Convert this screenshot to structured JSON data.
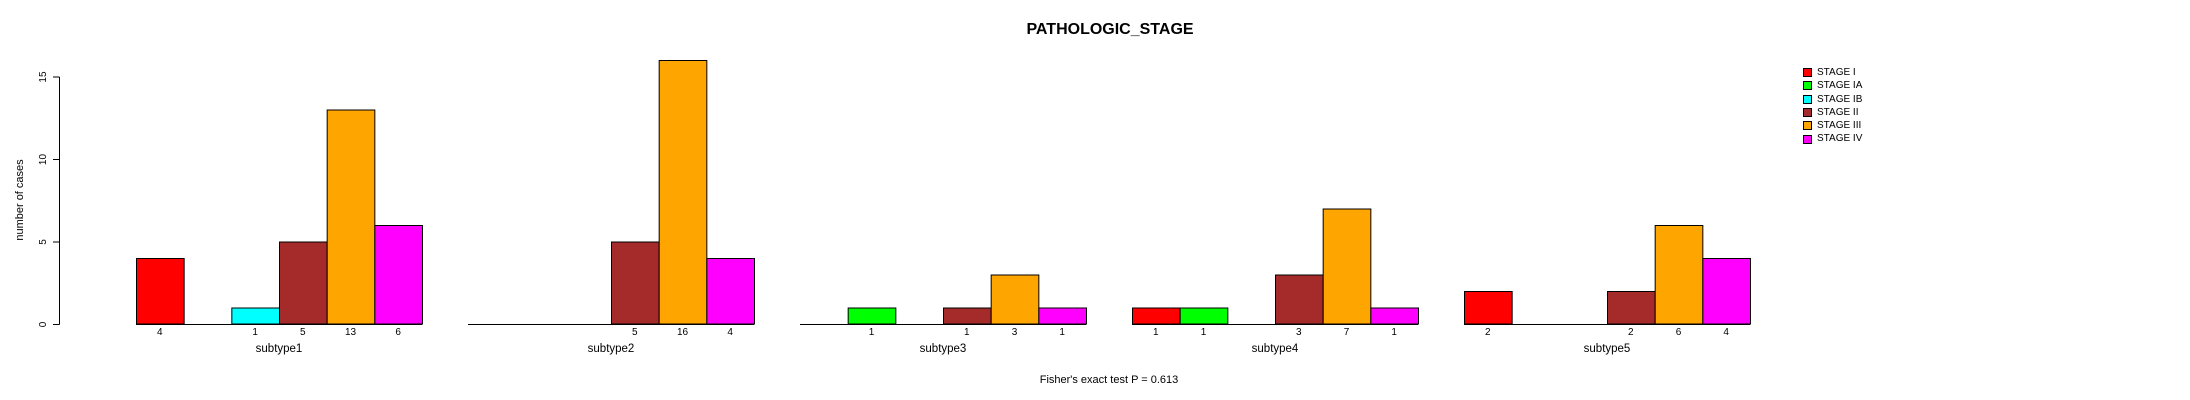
{
  "chart_data": {
    "type": "bar",
    "title": "PATHOLOGIC_STAGE",
    "ylabel": "number of cases",
    "xlabel": "",
    "categories": [
      "subtype1",
      "subtype2",
      "subtype3",
      "subtype4",
      "subtype5"
    ],
    "series": [
      {
        "name": "STAGE I",
        "color": "#FF0000",
        "values": [
          4,
          0,
          0,
          1,
          2
        ]
      },
      {
        "name": "STAGE IA",
        "color": "#00FF00",
        "values": [
          0,
          0,
          1,
          1,
          0
        ]
      },
      {
        "name": "STAGE IB",
        "color": "#00FFFF",
        "values": [
          1,
          0,
          0,
          0,
          0
        ]
      },
      {
        "name": "STAGE II",
        "color": "#A52A2A",
        "values": [
          5,
          5,
          1,
          3,
          2
        ]
      },
      {
        "name": "STAGE III",
        "color": "#FFA500",
        "values": [
          13,
          16,
          3,
          7,
          6
        ]
      },
      {
        "name": "STAGE IV",
        "color": "#FF00FF",
        "values": [
          6,
          4,
          1,
          1,
          4
        ]
      }
    ],
    "yticks": [
      0,
      5,
      10,
      15
    ],
    "ylim": [
      0,
      16
    ],
    "grid": false,
    "legend_position": "top-right",
    "show_value_labels_under_nonzero_bars": true,
    "bar_border_color": "#000000"
  },
  "footer": {
    "note": "Fisher's exact test P = 0.613"
  }
}
